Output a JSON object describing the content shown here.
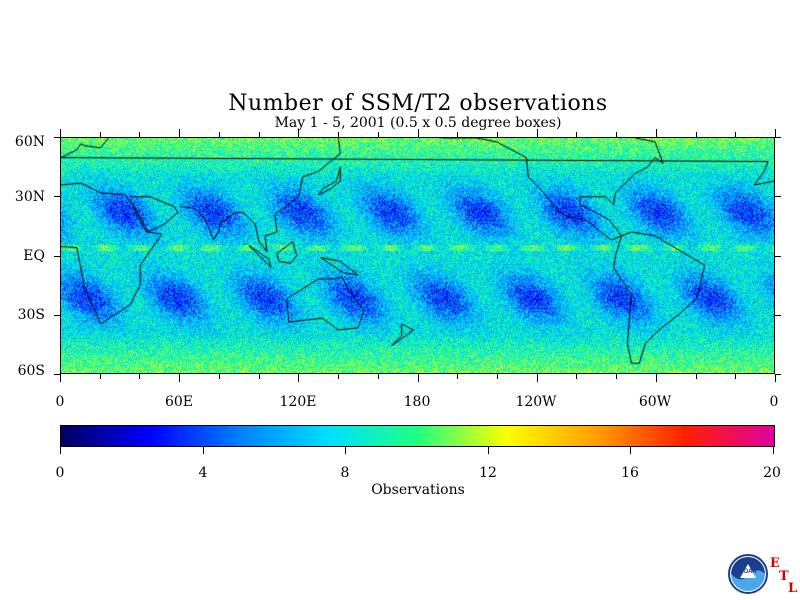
{
  "title": "Number of SSM/T2 observations",
  "subtitle": "May 1 - 5, 2001 (0.5 x 0.5 degree boxes)",
  "lat_labels": [
    "60N",
    "30N",
    "EQ",
    "30S",
    "60S"
  ],
  "lon_labels": [
    "0",
    "60E",
    "120E",
    "180",
    "120W",
    "60W",
    "0"
  ],
  "colorbar": {
    "title": "Observations",
    "labels": [
      "0",
      "4",
      "8",
      "12",
      "16",
      "20"
    ],
    "range": [
      0,
      20
    ],
    "colors": [
      "#00005f",
      "#0000ff",
      "#0080ff",
      "#00e0ff",
      "#20ff80",
      "#ffff00",
      "#ffa000",
      "#ff2000",
      "#e000a0"
    ]
  },
  "logo": {
    "name": "noaa-logo",
    "text": "NOAA",
    "etl": [
      "E",
      "T",
      "L"
    ]
  },
  "chart_data": {
    "type": "heatmap",
    "title": "Number of SSM/T2 observations",
    "subtitle": "May 1 - 5, 2001 (0.5 x 0.5 degree boxes)",
    "colorbar_label": "Observations",
    "value_range": [
      0,
      20
    ],
    "lon_range": [
      0,
      360
    ],
    "lat_range": [
      -60,
      60
    ],
    "typical_value": 8,
    "swath_gaps_value": 5,
    "high_latitude_value": 10
  }
}
